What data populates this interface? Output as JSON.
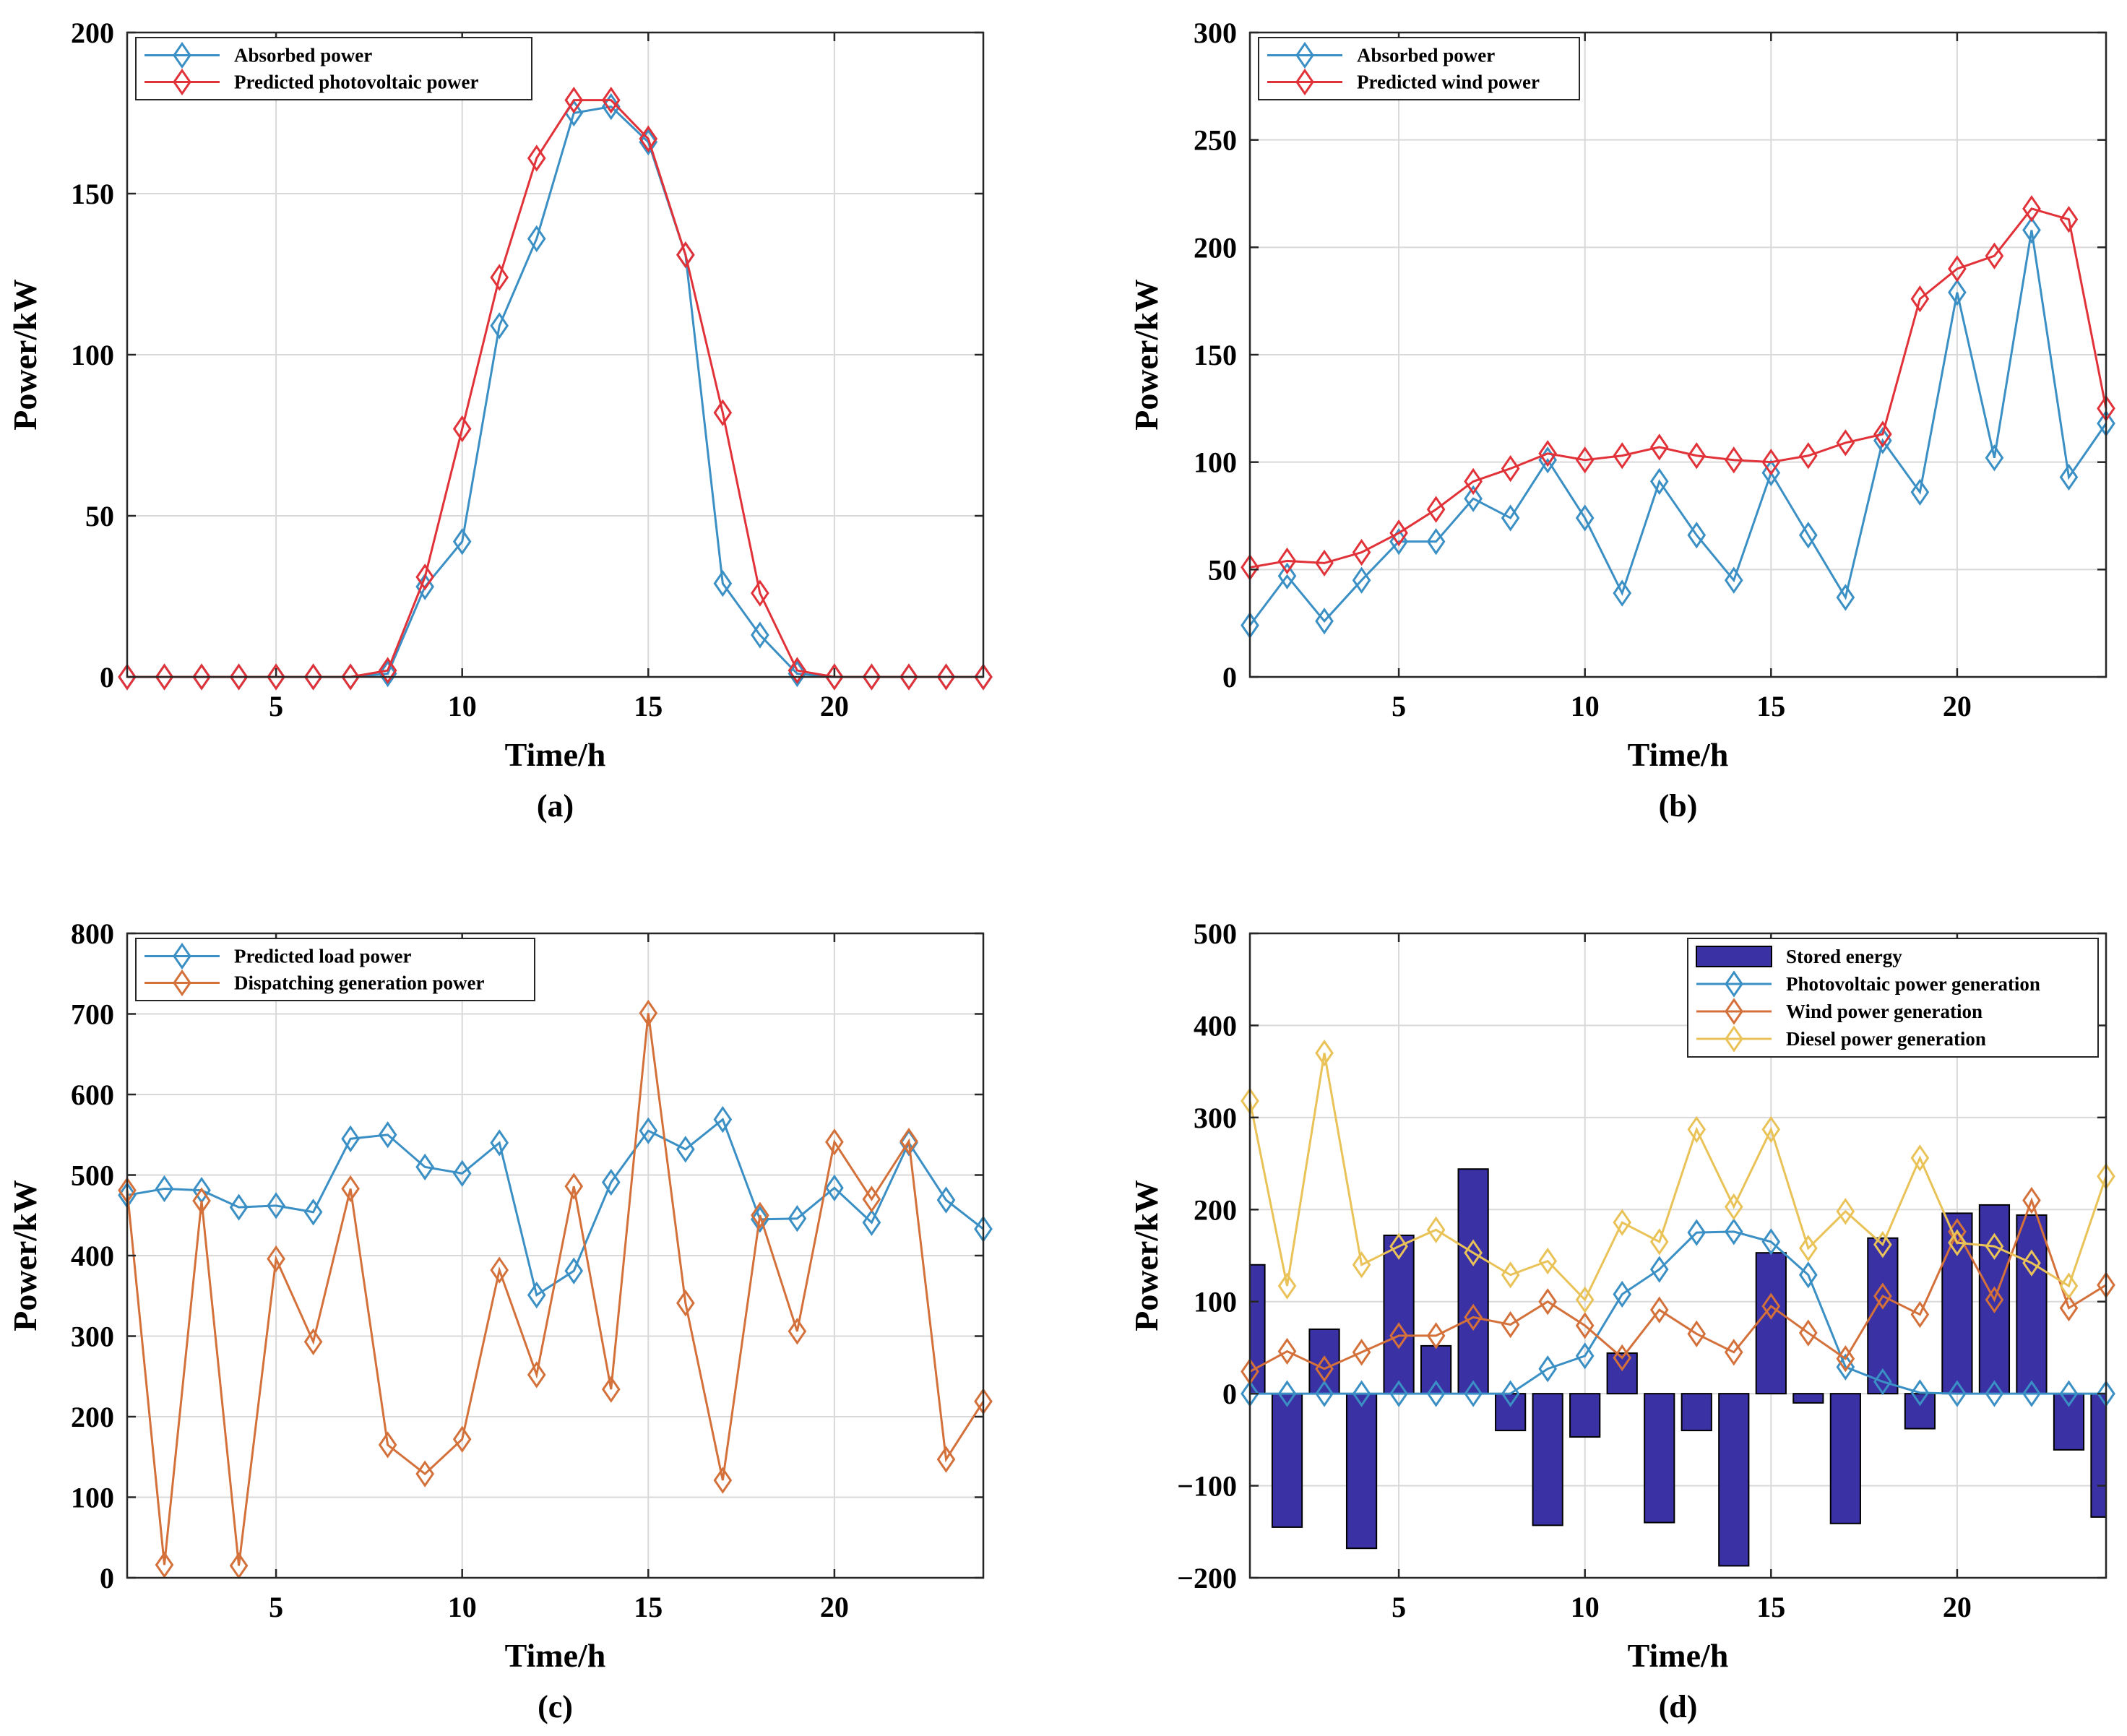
{
  "colors": {
    "blue": "#3a8fc4",
    "red": "#e03238",
    "orange": "#d4703a",
    "yellow": "#e9c258",
    "bar_fill": "#3a31a5",
    "bar_edge": "#000000",
    "grid": "#d9d9d9",
    "axis": "#262626"
  },
  "chart_data": [
    {
      "id": "a",
      "type": "line",
      "caption": "(a)",
      "xlabel": "Time/h",
      "ylabel": "Power/kW",
      "xlim": [
        1,
        24
      ],
      "ylim": [
        0,
        200
      ],
      "xticks": [
        5,
        10,
        15,
        20
      ],
      "yticks": [
        0,
        50,
        100,
        150,
        200
      ],
      "grid": true,
      "legend_position": "top-left",
      "x": [
        1,
        2,
        3,
        4,
        5,
        6,
        7,
        8,
        9,
        10,
        11,
        12,
        13,
        14,
        15,
        16,
        17,
        18,
        19,
        20,
        21,
        22,
        23,
        24
      ],
      "series": [
        {
          "name": "Absorbed power",
          "color": "blue",
          "marker": "diamond",
          "values": [
            0,
            0,
            0,
            0,
            0,
            0,
            0,
            1,
            28,
            42,
            109,
            136,
            175,
            177,
            166,
            131,
            29,
            13,
            1,
            0,
            0,
            0,
            0,
            0
          ]
        },
        {
          "name": "Predicted photovoltaic power",
          "color": "red",
          "marker": "diamond",
          "values": [
            0,
            0,
            0,
            0,
            0,
            0,
            0,
            2,
            31,
            77,
            124,
            161,
            179,
            179,
            167,
            131,
            82,
            26,
            2,
            0,
            0,
            0,
            0,
            0
          ]
        }
      ]
    },
    {
      "id": "b",
      "type": "line",
      "caption": "(b)",
      "xlabel": "Time/h",
      "ylabel": "Power/kW",
      "xlim": [
        1,
        24
      ],
      "ylim": [
        0,
        300
      ],
      "xticks": [
        5,
        10,
        15,
        20
      ],
      "yticks": [
        0,
        50,
        100,
        150,
        200,
        250,
        300
      ],
      "grid": true,
      "legend_position": "top-left",
      "x": [
        1,
        2,
        3,
        4,
        5,
        6,
        7,
        8,
        9,
        10,
        11,
        12,
        13,
        14,
        15,
        16,
        17,
        18,
        19,
        20,
        21,
        22,
        23,
        24
      ],
      "series": [
        {
          "name": "Absorbed power",
          "color": "blue",
          "marker": "diamond",
          "values": [
            24,
            47,
            26,
            45,
            63,
            63,
            83,
            74,
            101,
            74,
            39,
            91,
            66,
            45,
            95,
            66,
            37,
            110,
            86,
            179,
            102,
            208,
            93,
            118
          ]
        },
        {
          "name": "Predicted wind power",
          "color": "red",
          "marker": "diamond",
          "values": [
            51,
            54,
            53,
            58,
            67,
            78,
            91,
            97,
            104,
            101,
            103,
            107,
            103,
            101,
            100,
            103,
            109,
            113,
            176,
            190,
            196,
            218,
            213,
            125
          ]
        }
      ]
    },
    {
      "id": "c",
      "type": "line",
      "caption": "(c)",
      "xlabel": "Time/h",
      "ylabel": "Power/kW",
      "xlim": [
        1,
        24
      ],
      "ylim": [
        0,
        800
      ],
      "xticks": [
        5,
        10,
        15,
        20
      ],
      "yticks": [
        0,
        100,
        200,
        300,
        400,
        500,
        600,
        700,
        800
      ],
      "grid": true,
      "legend_position": "top-left",
      "x": [
        1,
        2,
        3,
        4,
        5,
        6,
        7,
        8,
        9,
        10,
        11,
        12,
        13,
        14,
        15,
        16,
        17,
        18,
        19,
        20,
        21,
        22,
        23,
        24
      ],
      "series": [
        {
          "name": "Predicted load power",
          "color": "blue",
          "marker": "diamond",
          "values": [
            475,
            483,
            481,
            460,
            462,
            454,
            545,
            550,
            510,
            502,
            540,
            351,
            381,
            491,
            555,
            532,
            569,
            445,
            446,
            484,
            441,
            540,
            469,
            433
          ]
        },
        {
          "name": "Dispatching generation power",
          "color": "orange",
          "marker": "diamond",
          "values": [
            481,
            16,
            468,
            15,
            396,
            293,
            483,
            165,
            129,
            172,
            382,
            252,
            486,
            234,
            701,
            341,
            121,
            450,
            306,
            541,
            470,
            542,
            147,
            219
          ]
        }
      ]
    },
    {
      "id": "d",
      "type": "bar+line",
      "caption": "(d)",
      "xlabel": "Time/h",
      "ylabel": "Power/kW",
      "xlim": [
        1,
        24
      ],
      "ylim": [
        -200,
        500
      ],
      "xticks": [
        5,
        10,
        15,
        20
      ],
      "yticks": [
        -200,
        -100,
        0,
        100,
        200,
        300,
        400,
        500
      ],
      "grid": true,
      "legend_position": "top-right",
      "x": [
        1,
        2,
        3,
        4,
        5,
        6,
        7,
        8,
        9,
        10,
        11,
        12,
        13,
        14,
        15,
        16,
        17,
        18,
        19,
        20,
        21,
        22,
        23,
        24
      ],
      "bars": {
        "name": "Stored energy",
        "values": [
          140,
          -145,
          70,
          -168,
          172,
          52,
          244,
          -40,
          -143,
          -47,
          44,
          -140,
          -40,
          -187,
          153,
          -10,
          -141,
          169,
          -38,
          196,
          205,
          194,
          -61,
          -134
        ]
      },
      "series": [
        {
          "name": "Photovoltaic power generation",
          "color": "blue",
          "marker": "diamond",
          "values": [
            0,
            0,
            0,
            0,
            0,
            0,
            0,
            0,
            27,
            41,
            108,
            135,
            175,
            176,
            165,
            129,
            29,
            13,
            1,
            0,
            0,
            0,
            0,
            0
          ]
        },
        {
          "name": "Wind power generation",
          "color": "orange",
          "marker": "diamond",
          "values": [
            24,
            46,
            27,
            45,
            63,
            63,
            83,
            75,
            100,
            74,
            39,
            91,
            65,
            45,
            95,
            66,
            38,
            106,
            86,
            176,
            102,
            210,
            93,
            118
          ]
        },
        {
          "name": "Diesel power generation",
          "color": "yellow",
          "marker": "diamond",
          "values": [
            318,
            117,
            370,
            140,
            160,
            178,
            153,
            129,
            144,
            102,
            186,
            165,
            287,
            203,
            287,
            158,
            198,
            162,
            256,
            164,
            160,
            142,
            117,
            236
          ]
        }
      ]
    }
  ]
}
